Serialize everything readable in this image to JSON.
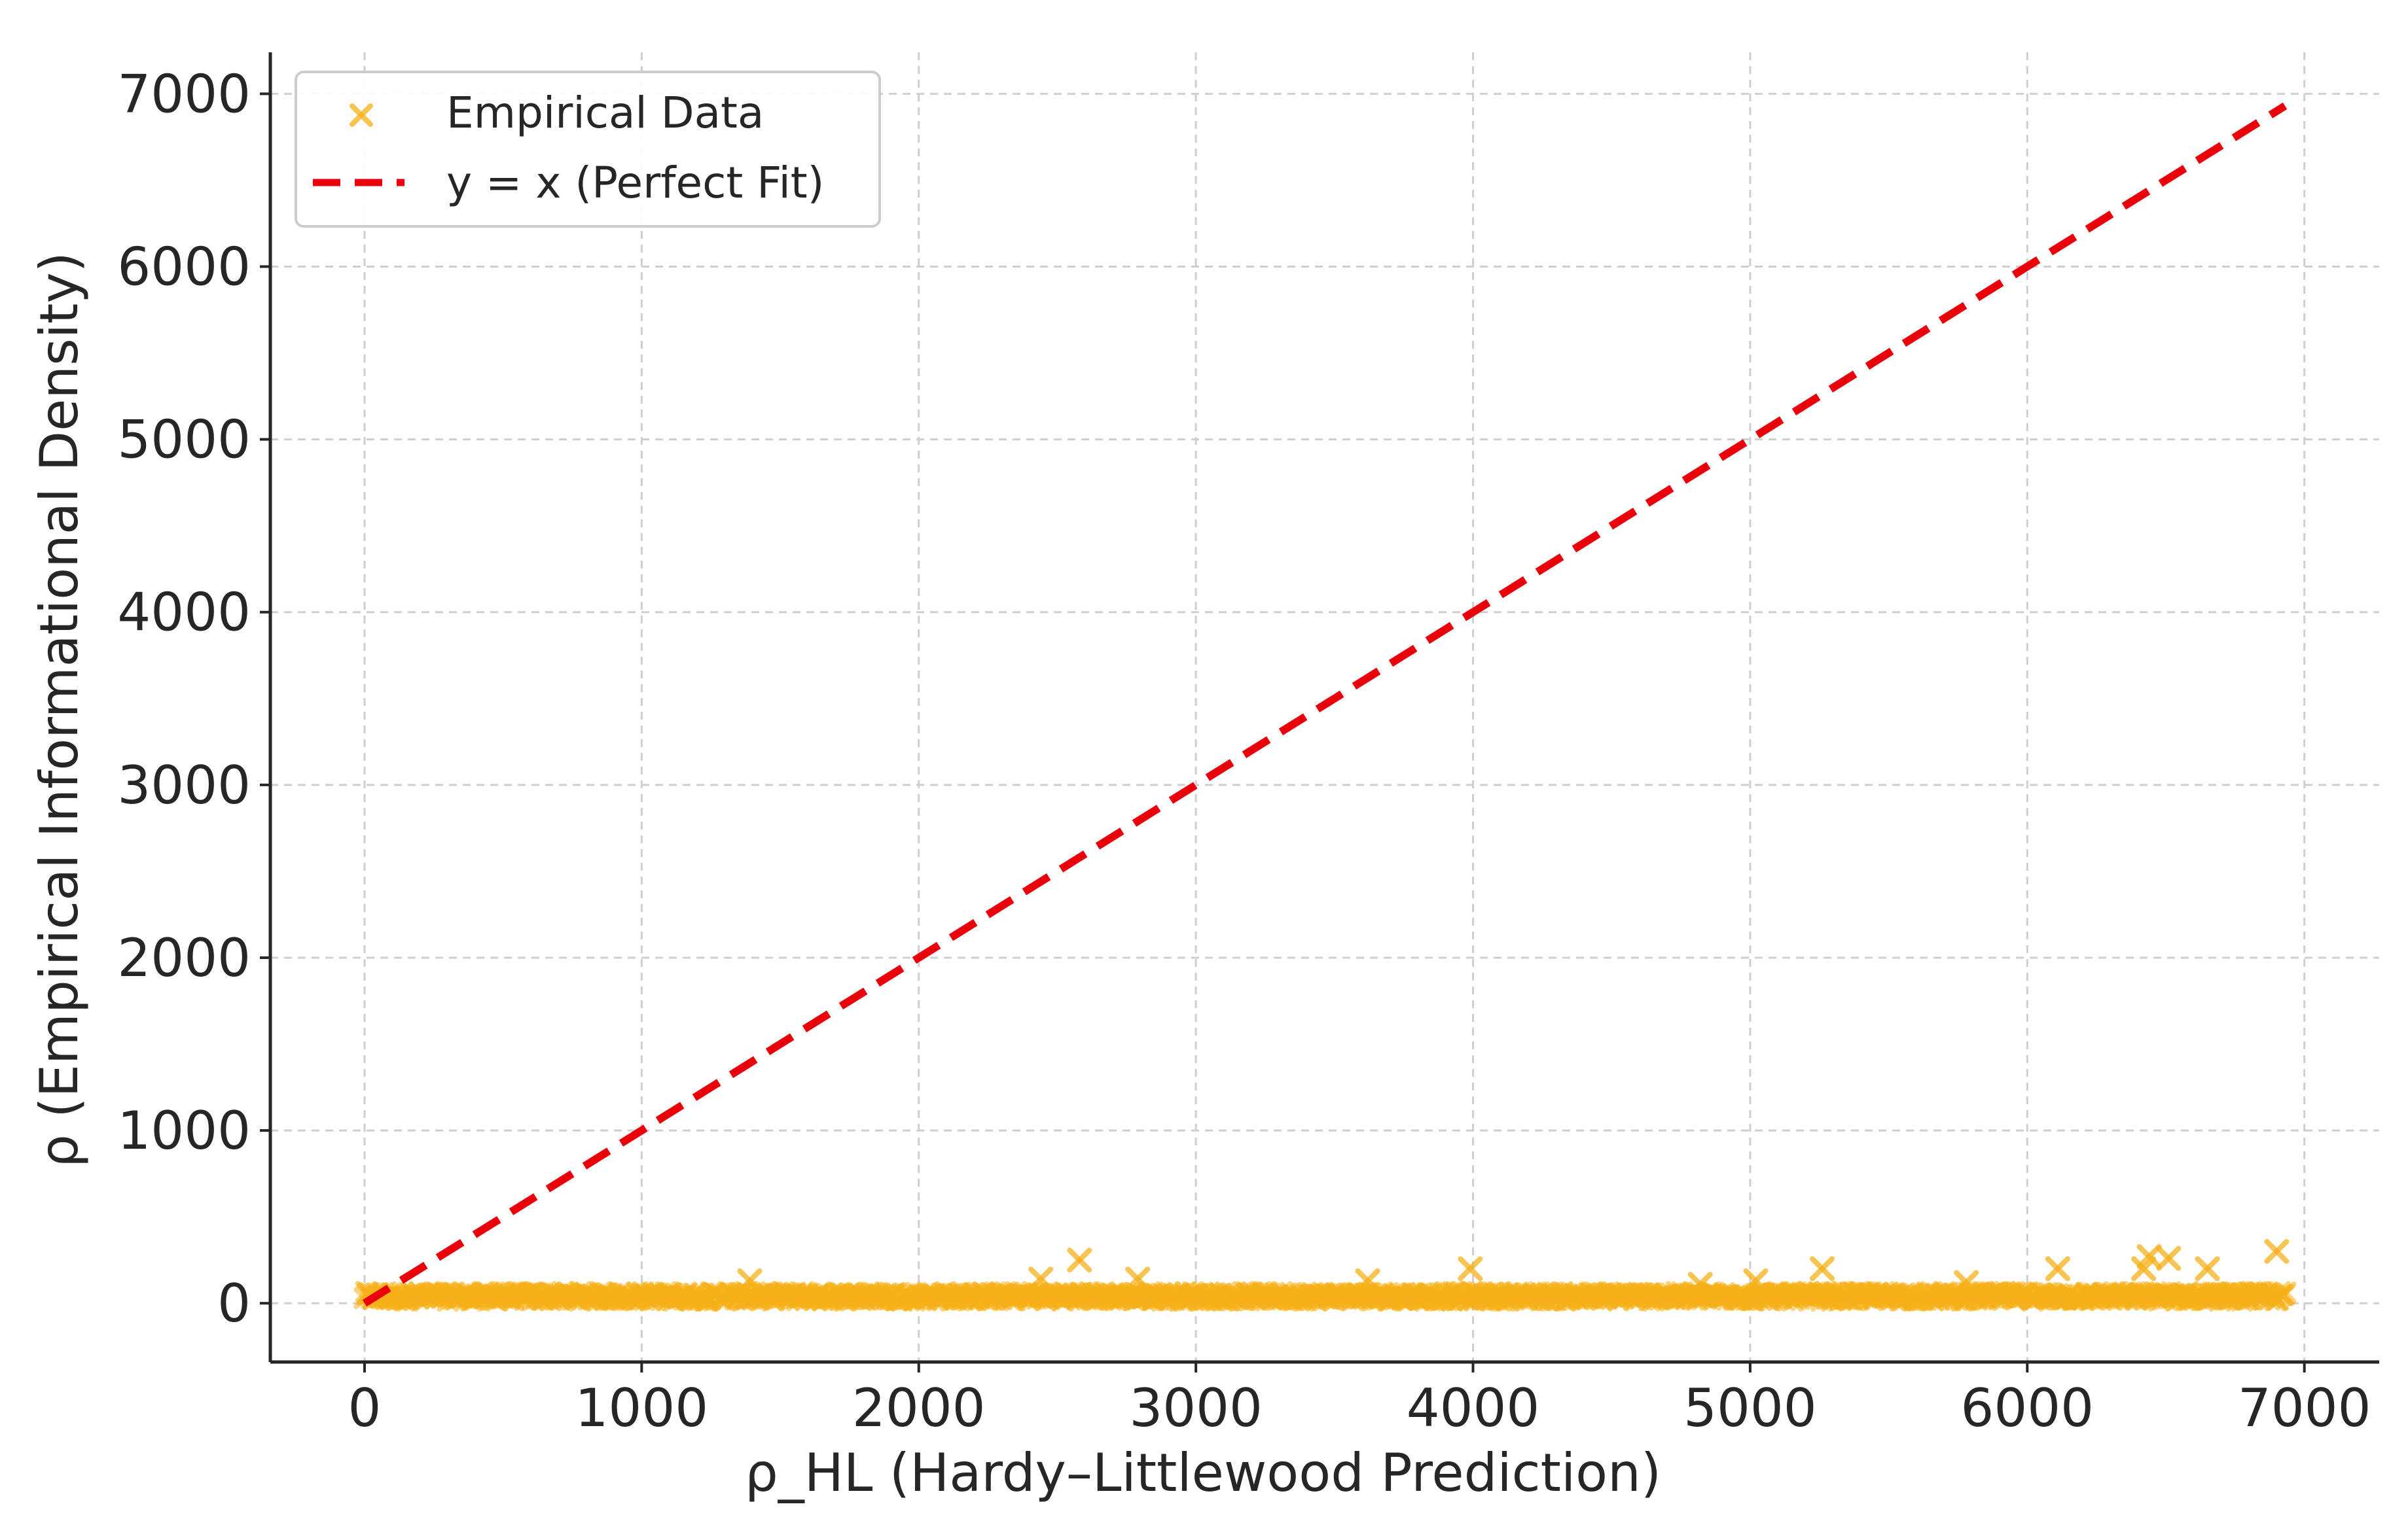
{
  "chart_data": {
    "type": "scatter",
    "xlabel": "ρ_HL (Hardy–Littlewood Prediction)",
    "ylabel": "ρ (Empirical Informational Density)",
    "xlim": [
      -340,
      7270
    ],
    "ylim": [
      -340,
      7240
    ],
    "x_ticks": [
      0,
      1000,
      2000,
      3000,
      4000,
      5000,
      6000,
      7000
    ],
    "y_ticks": [
      0,
      1000,
      2000,
      3000,
      4000,
      5000,
      6000,
      7000
    ],
    "x_tick_labels": [
      "0",
      "1000",
      "2000",
      "3000",
      "4000",
      "5000",
      "6000",
      "7000"
    ],
    "y_tick_labels": [
      "0",
      "1000",
      "2000",
      "3000",
      "4000",
      "5000",
      "6000",
      "7000"
    ],
    "grid": true,
    "legend_position": "top-left",
    "colors": {
      "scatter": "#f5b01a",
      "line": "#e8000b",
      "grid": "#cfcfcf",
      "axis": "#262626"
    },
    "series": [
      {
        "name": "Empirical Data",
        "kind": "scatter",
        "marker": "x",
        "x_range": [
          0,
          6930
        ],
        "band_y": [
          15,
          65
        ],
        "outliers": [
          {
            "x": 2580,
            "y": 250
          },
          {
            "x": 2440,
            "y": 140
          },
          {
            "x": 2790,
            "y": 140
          },
          {
            "x": 1390,
            "y": 130
          },
          {
            "x": 3990,
            "y": 200
          },
          {
            "x": 5260,
            "y": 200
          },
          {
            "x": 6110,
            "y": 200
          },
          {
            "x": 6440,
            "y": 270
          },
          {
            "x": 6510,
            "y": 260
          },
          {
            "x": 6650,
            "y": 200
          },
          {
            "x": 6900,
            "y": 300
          },
          {
            "x": 6420,
            "y": 200
          },
          {
            "x": 5020,
            "y": 130
          },
          {
            "x": 3620,
            "y": 130
          },
          {
            "x": 4820,
            "y": 110
          },
          {
            "x": 5780,
            "y": 120
          }
        ]
      },
      {
        "name": "y = x (Perfect Fit)",
        "kind": "line",
        "style": "dashed",
        "x": [
          0,
          6930
        ],
        "y": [
          0,
          6930
        ]
      }
    ]
  }
}
